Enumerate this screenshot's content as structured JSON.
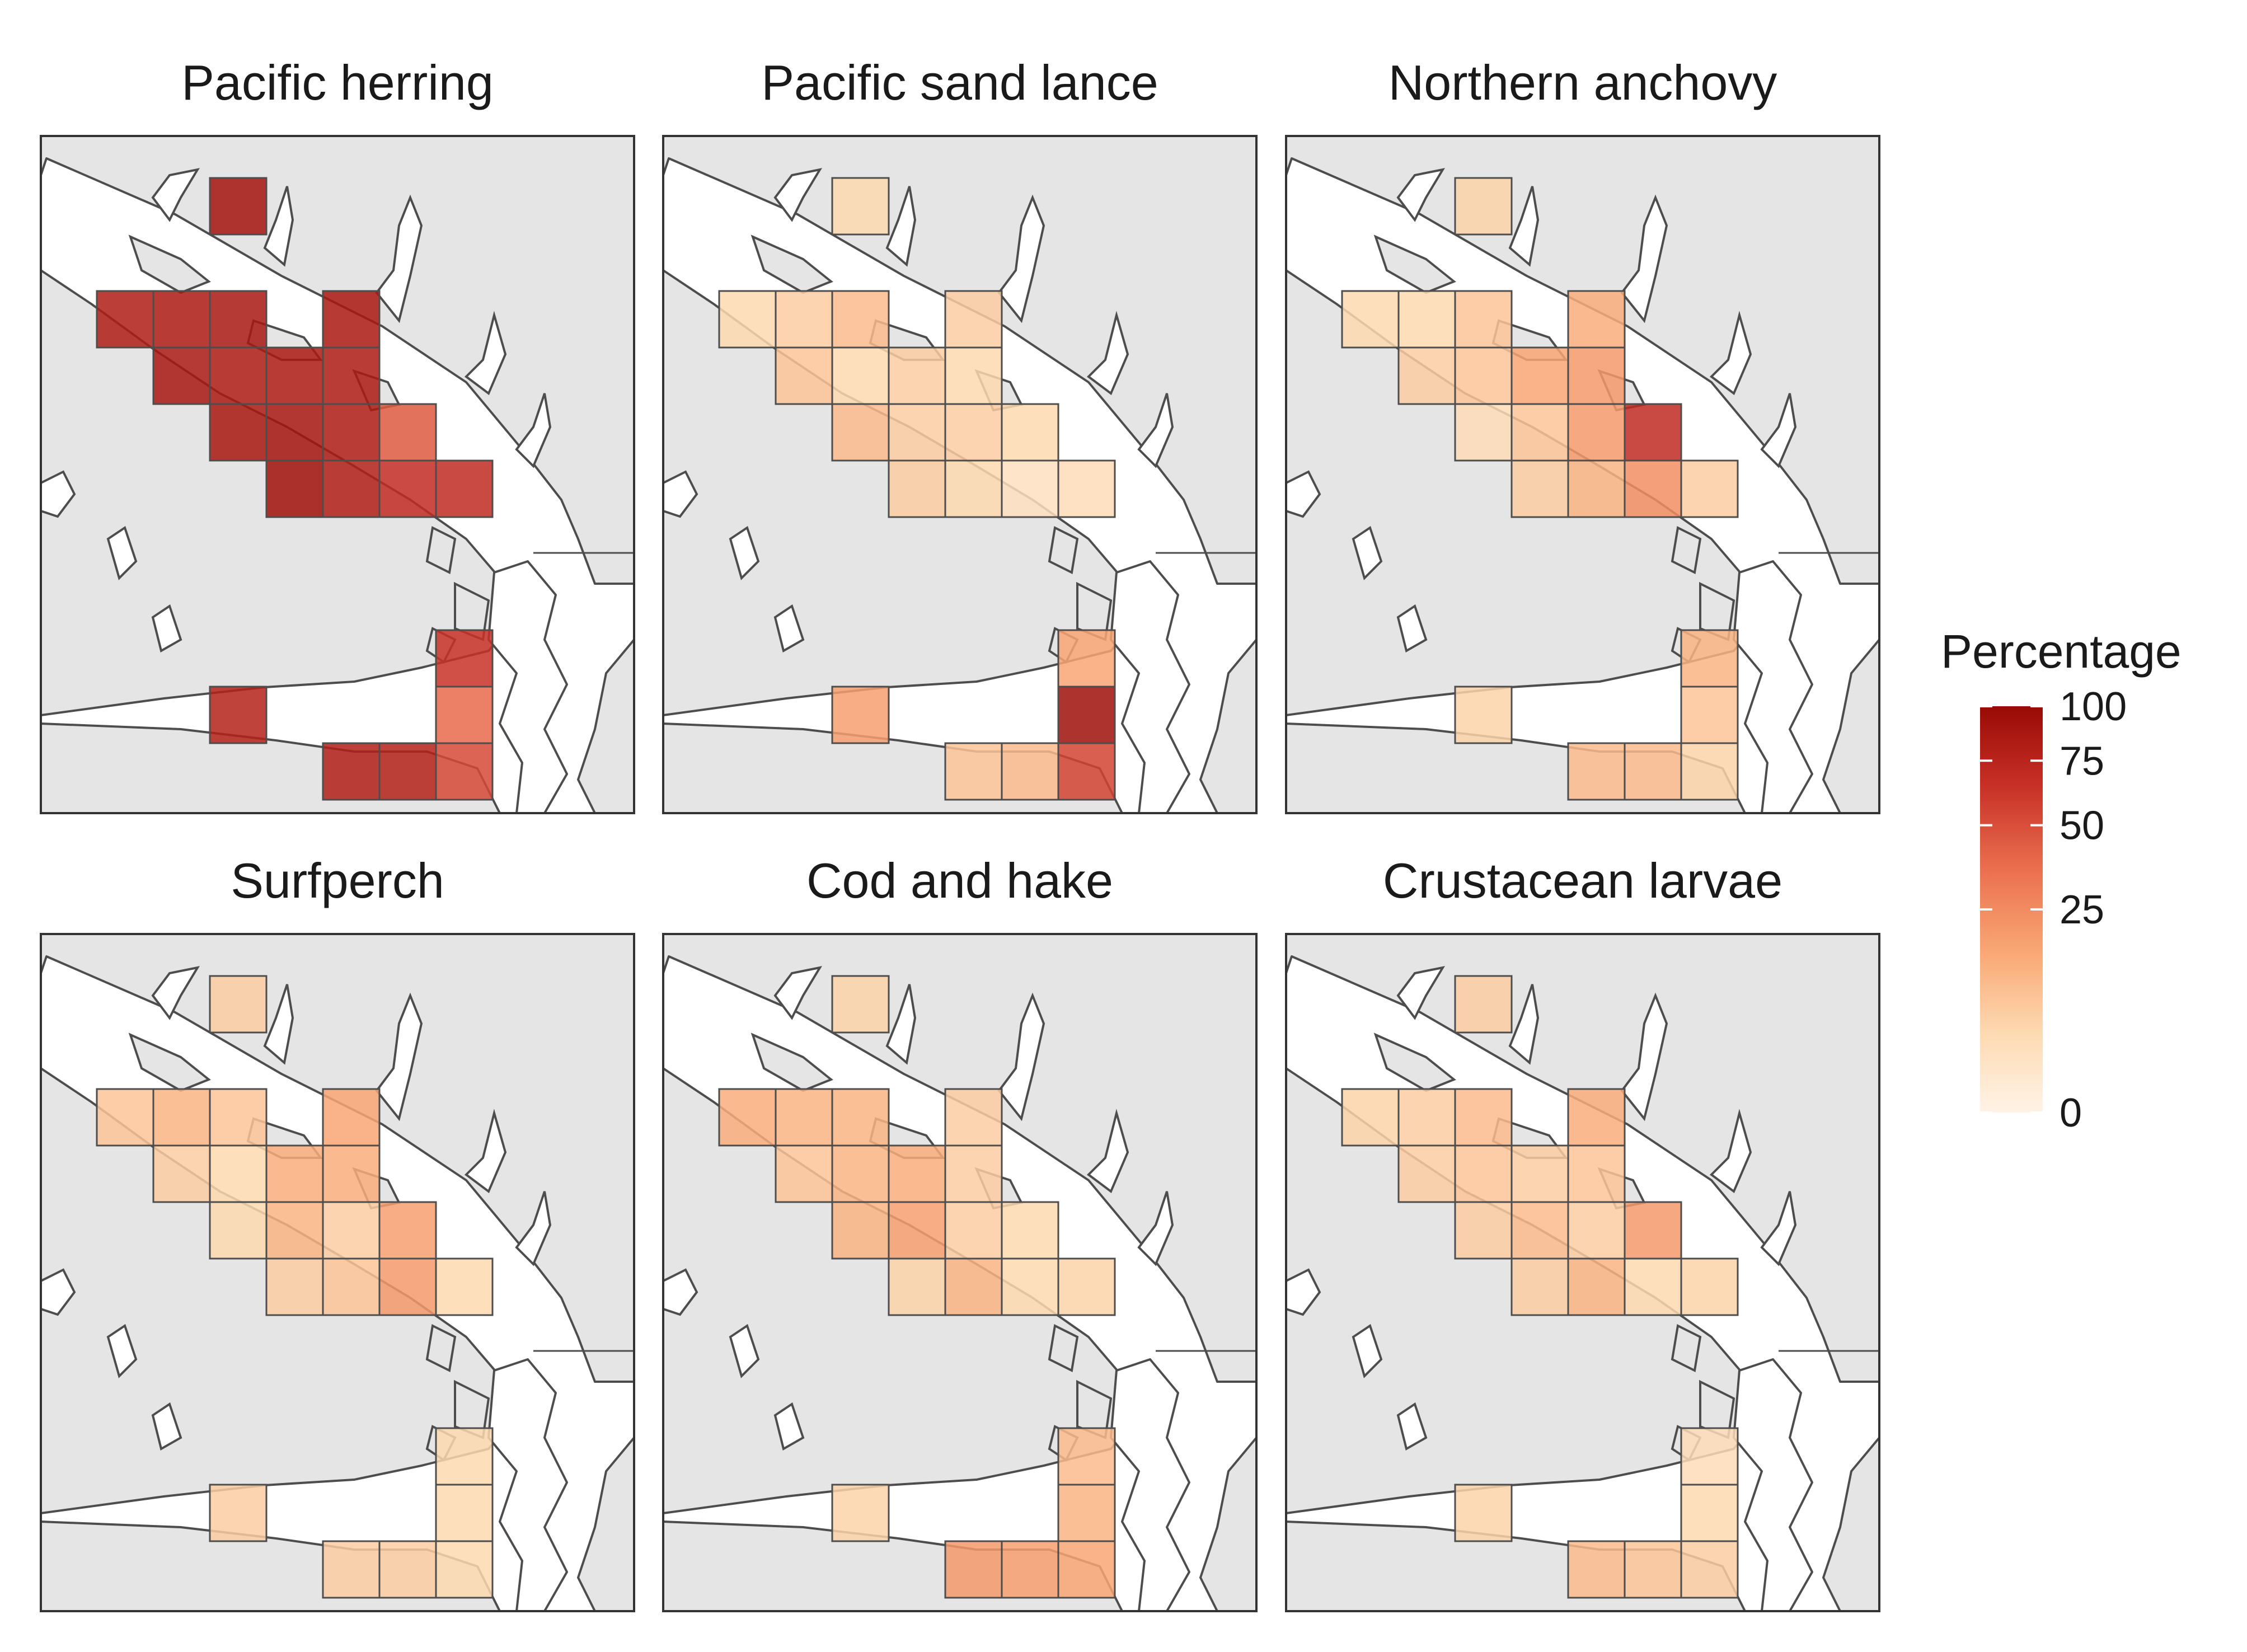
{
  "chart_data": {
    "type": "heatmap",
    "grid_cells": [
      {
        "col": 3,
        "row": 0
      },
      {
        "col": 1,
        "row": 2
      },
      {
        "col": 2,
        "row": 2
      },
      {
        "col": 3,
        "row": 2
      },
      {
        "col": 5,
        "row": 2
      },
      {
        "col": 2,
        "row": 3
      },
      {
        "col": 3,
        "row": 3
      },
      {
        "col": 4,
        "row": 3
      },
      {
        "col": 5,
        "row": 3
      },
      {
        "col": 3,
        "row": 4
      },
      {
        "col": 4,
        "row": 4
      },
      {
        "col": 5,
        "row": 4
      },
      {
        "col": 6,
        "row": 4
      },
      {
        "col": 4,
        "row": 5
      },
      {
        "col": 5,
        "row": 5
      },
      {
        "col": 6,
        "row": 5
      },
      {
        "col": 7,
        "row": 5
      },
      {
        "col": 7,
        "row": 8
      },
      {
        "col": 3,
        "row": 9
      },
      {
        "col": 7,
        "row": 9
      },
      {
        "col": 5,
        "row": 10
      },
      {
        "col": 6,
        "row": 10
      },
      {
        "col": 7,
        "row": 10
      }
    ],
    "panels": [
      {
        "title": "Pacific herring",
        "values": [
          90,
          82,
          85,
          88,
          86,
          88,
          85,
          85,
          84,
          87,
          90,
          84,
          45,
          93,
          80,
          68,
          70,
          64,
          78,
          38,
          80,
          78,
          52
        ]
      },
      {
        "title": "Pacific sand lance",
        "values": [
          4,
          4,
          6,
          10,
          6,
          8,
          4,
          6,
          4,
          10,
          6,
          6,
          4,
          6,
          4,
          2,
          3,
          16,
          18,
          95,
          8,
          10,
          55
        ]
      },
      {
        "title": "Northern anchovy",
        "values": [
          5,
          4,
          4,
          8,
          14,
          6,
          8,
          16,
          20,
          3,
          8,
          20,
          70,
          6,
          12,
          24,
          6,
          12,
          5,
          8,
          10,
          10,
          5
        ]
      },
      {
        "title": "Surfperch",
        "values": [
          6,
          8,
          12,
          8,
          16,
          6,
          4,
          14,
          14,
          4,
          12,
          6,
          18,
          6,
          8,
          20,
          4,
          4,
          6,
          4,
          6,
          6,
          4
        ]
      },
      {
        "title": "Cod and hake",
        "values": [
          5,
          14,
          12,
          12,
          6,
          8,
          12,
          14,
          6,
          12,
          18,
          6,
          4,
          5,
          12,
          4,
          5,
          10,
          5,
          12,
          20,
          18,
          16
        ]
      },
      {
        "title": "Crustacean larvae",
        "values": [
          6,
          5,
          6,
          10,
          14,
          6,
          8,
          6,
          8,
          6,
          10,
          6,
          20,
          6,
          12,
          4,
          5,
          3,
          5,
          4,
          10,
          8,
          6
        ]
      }
    ],
    "legend": {
      "title": "Percentage",
      "ticks": [
        {
          "value": 100,
          "label": "100"
        },
        {
          "value": 75,
          "label": "75"
        },
        {
          "value": 50,
          "label": "50"
        },
        {
          "value": 25,
          "label": "25"
        },
        {
          "value": 0,
          "label": "0"
        }
      ],
      "scale": "sqrt",
      "range": [
        0,
        100
      ],
      "placement": "right"
    },
    "colors": {
      "ramp": [
        "#fff3e6",
        "#fdd9b0",
        "#f9a673",
        "#ea6f4f",
        "#c83127",
        "#990a05"
      ],
      "land": "#e5e5e5",
      "water": "#ffffff",
      "coast": "#4d4d4d",
      "cell_border": "#4d4d4d",
      "panel_border": "#333333"
    }
  }
}
